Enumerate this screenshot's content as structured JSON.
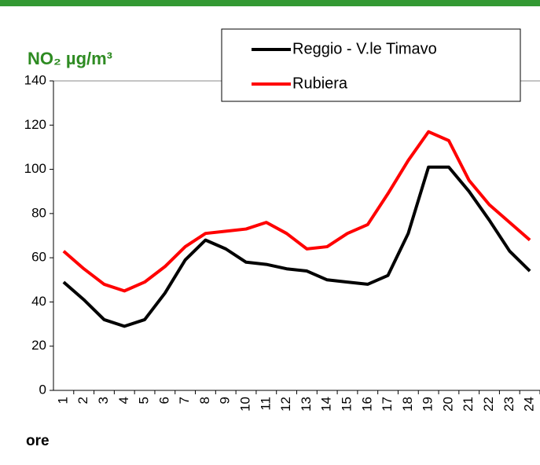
{
  "chart_data": {
    "type": "line",
    "y_label": "NO₂ µg/m³",
    "x_label": "ore",
    "categories": [
      "1",
      "2",
      "3",
      "4",
      "5",
      "6",
      "7",
      "8",
      "9",
      "10",
      "11",
      "12",
      "13",
      "14",
      "15",
      "16",
      "17",
      "18",
      "19",
      "20",
      "21",
      "22",
      "23",
      "24"
    ],
    "series": [
      {
        "name": "Reggio - V.le Timavo",
        "color": "#000000",
        "values": [
          49,
          41,
          32,
          29,
          32,
          44,
          59,
          68,
          64,
          58,
          57,
          55,
          54,
          50,
          49,
          48,
          52,
          71,
          101,
          101,
          90,
          77,
          63,
          54
        ]
      },
      {
        "name": "Rubiera",
        "color": "#ff0000",
        "values": [
          63,
          55,
          48,
          45,
          49,
          56,
          65,
          71,
          72,
          73,
          76,
          71,
          64,
          65,
          71,
          75,
          89,
          104,
          117,
          113,
          95,
          84,
          76,
          68
        ]
      }
    ],
    "ylim": [
      0,
      140
    ],
    "yticks": [
      0,
      20,
      40,
      60,
      80,
      100,
      120,
      140
    ],
    "grid": false
  }
}
